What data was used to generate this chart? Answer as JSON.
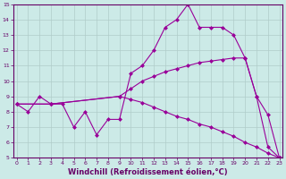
{
  "lines": [
    {
      "x": [
        0,
        1,
        2,
        3,
        4,
        5,
        6,
        7,
        8,
        9,
        10,
        11,
        12,
        13,
        14,
        15,
        16,
        17,
        18,
        19,
        20,
        21,
        22,
        23
      ],
      "y": [
        8.5,
        8.0,
        9.0,
        8.5,
        8.5,
        7.0,
        8.0,
        6.5,
        7.5,
        7.5,
        10.5,
        11.0,
        12.0,
        13.5,
        14.0,
        15.0,
        13.5,
        13.5,
        13.5,
        13.0,
        11.5,
        9.0,
        7.8,
        5.0
      ],
      "color": "#990099",
      "marker": "D",
      "markersize": 2,
      "linewidth": 0.8
    },
    {
      "x": [
        0,
        3,
        9,
        10,
        11,
        12,
        13,
        14,
        15,
        16,
        17,
        18,
        19,
        20,
        21,
        22,
        23
      ],
      "y": [
        8.5,
        8.5,
        9.0,
        9.5,
        10.0,
        10.3,
        10.6,
        10.8,
        11.0,
        11.2,
        11.3,
        11.4,
        11.5,
        11.5,
        9.0,
        5.7,
        5.0
      ],
      "color": "#990099",
      "marker": "D",
      "markersize": 2,
      "linewidth": 0.8
    },
    {
      "x": [
        0,
        3,
        9,
        10,
        11,
        12,
        13,
        14,
        15,
        16,
        17,
        18,
        19,
        20,
        21,
        22,
        23
      ],
      "y": [
        8.5,
        8.5,
        9.0,
        8.8,
        8.6,
        8.3,
        8.0,
        7.7,
        7.5,
        7.2,
        7.0,
        6.7,
        6.4,
        6.0,
        5.7,
        5.3,
        5.0
      ],
      "color": "#990099",
      "marker": "D",
      "markersize": 2,
      "linewidth": 0.8
    }
  ],
  "xlim": [
    -0.3,
    23.3
  ],
  "ylim": [
    5,
    15
  ],
  "yticks": [
    5,
    6,
    7,
    8,
    9,
    10,
    11,
    12,
    13,
    14,
    15
  ],
  "xticks": [
    0,
    1,
    2,
    3,
    4,
    5,
    6,
    7,
    8,
    9,
    10,
    11,
    12,
    13,
    14,
    15,
    16,
    17,
    18,
    19,
    20,
    21,
    22,
    23
  ],
  "xlabel": "Windchill (Refroidissement éolien,°C)",
  "background_color": "#cceae7",
  "grid_color": "#b0ccc9",
  "axis_color": "#660066",
  "tick_color": "#660066",
  "label_color": "#660066",
  "tick_fontsize": 4.5,
  "xlabel_fontsize": 6.0
}
